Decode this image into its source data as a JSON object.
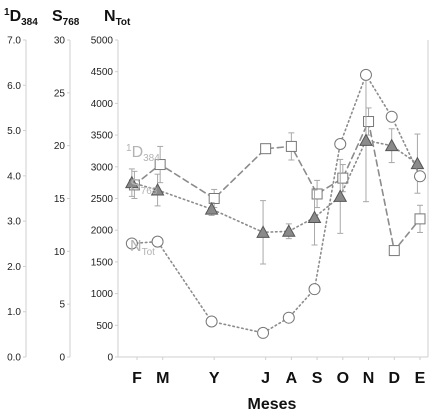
{
  "chart_data": {
    "type": "line",
    "xlabel": "Meses",
    "categories": [
      "F",
      "M",
      "Y",
      "J",
      "A",
      "S",
      "O",
      "N",
      "D",
      "E"
    ],
    "axes": {
      "D": {
        "title_main": "D",
        "title_sup": "1",
        "title_sub": "384",
        "ylim": [
          0,
          7
        ],
        "ticks": [
          "0.0",
          "1.0",
          "2.0",
          "3.0",
          "4.0",
          "5.0",
          "6.0",
          "7.0"
        ]
      },
      "S": {
        "title_main": "S",
        "title_sub": "768",
        "ylim": [
          0,
          30
        ],
        "ticks": [
          "0",
          "5",
          "10",
          "15",
          "20",
          "25",
          "30"
        ]
      },
      "N": {
        "title_main": "N",
        "title_sub": "Tot",
        "ylim": [
          0,
          5000
        ],
        "ticks": [
          "0",
          "500",
          "1000",
          "1500",
          "2000",
          "2500",
          "3000",
          "3500",
          "4000",
          "4500",
          "5000"
        ]
      }
    },
    "x_positions": [
      1,
      2,
      4,
      6,
      7,
      8,
      9,
      10,
      11,
      12
    ],
    "series": [
      {
        "name_main": "D",
        "name_sup": "1",
        "name_sub": "384",
        "axis": "D",
        "marker": "square",
        "style": "dashed",
        "color": "#8c8c8c",
        "points": [
          {
            "x": 0.9,
            "y": 3.8,
            "err": 0.3
          },
          {
            "x": 1.9,
            "y": 4.25,
            "err": 0.4
          },
          {
            "x": 4.0,
            "y": 3.5,
            "err": 0.2
          },
          {
            "x": 6.0,
            "y": 4.6,
            "err": 0
          },
          {
            "x": 7.0,
            "y": 4.65,
            "err": 0.3
          },
          {
            "x": 8.0,
            "y": 3.6,
            "err": 0.3
          },
          {
            "x": 9.0,
            "y": 3.95,
            "err": 0.3
          },
          {
            "x": 10.0,
            "y": 5.2,
            "err": 0.3
          },
          {
            "x": 11.0,
            "y": 2.35,
            "err": 0
          },
          {
            "x": 12.0,
            "y": 3.05,
            "err": 0.3
          }
        ]
      },
      {
        "name_main": "S",
        "name_sub": "768",
        "axis": "S",
        "marker": "triangle",
        "style": "dotted",
        "color": "#8c8c8c",
        "points": [
          {
            "x": 0.8,
            "y": 16.5,
            "err": 1.3
          },
          {
            "x": 1.8,
            "y": 15.8,
            "err": 1.5
          },
          {
            "x": 3.9,
            "y": 14.0,
            "err": 0.6
          },
          {
            "x": 5.9,
            "y": 11.8,
            "err": 3.0
          },
          {
            "x": 6.9,
            "y": 11.9,
            "err": 0.7
          },
          {
            "x": 7.9,
            "y": 13.2,
            "err": 2.6
          },
          {
            "x": 8.9,
            "y": 15.2,
            "err": 3.5
          },
          {
            "x": 9.9,
            "y": 20.5,
            "err": 5.8
          },
          {
            "x": 10.9,
            "y": 20.0,
            "err": 1.6
          },
          {
            "x": 11.9,
            "y": 18.3,
            "err": 2.8
          }
        ]
      },
      {
        "name_main": "N",
        "name_sub": "Tot",
        "axis": "N",
        "marker": "circle",
        "style": "dotted",
        "color": "#8c8c8c",
        "points": [
          {
            "x": 0.8,
            "y": 1790
          },
          {
            "x": 1.8,
            "y": 1820
          },
          {
            "x": 3.9,
            "y": 560
          },
          {
            "x": 5.9,
            "y": 380
          },
          {
            "x": 6.9,
            "y": 620
          },
          {
            "x": 7.9,
            "y": 1070
          },
          {
            "x": 8.9,
            "y": 3360
          },
          {
            "x": 9.9,
            "y": 4450
          },
          {
            "x": 10.9,
            "y": 3790
          },
          {
            "x": 12.0,
            "y": 2850
          }
        ]
      }
    ]
  }
}
